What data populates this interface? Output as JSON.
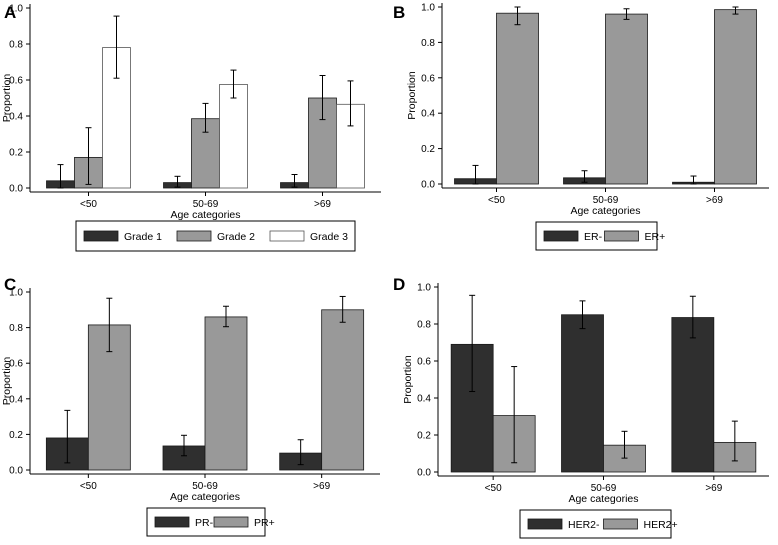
{
  "chart_data": [
    {
      "type": "bar",
      "panel_label": "A",
      "categories": [
        "<50",
        "50-69",
        ">69"
      ],
      "series": [
        {
          "name": "Grade 1",
          "color": "#2f2f2f",
          "values": [
            0.04,
            0.03,
            0.03
          ],
          "err_low": [
            0.0,
            0.005,
            0.005
          ],
          "err_high": [
            0.13,
            0.065,
            0.075
          ]
        },
        {
          "name": "Grade 2",
          "color": "#999999",
          "values": [
            0.17,
            0.385,
            0.5
          ],
          "err_low": [
            0.02,
            0.31,
            0.38
          ],
          "err_high": [
            0.335,
            0.47,
            0.625
          ]
        },
        {
          "name": "Grade 3",
          "color": "#ffffff",
          "values": [
            0.78,
            0.575,
            0.465
          ],
          "err_low": [
            0.61,
            0.5,
            0.345
          ],
          "err_high": [
            0.955,
            0.655,
            0.595
          ]
        }
      ],
      "xlabel": "Age categories",
      "ylabel": "Proportion",
      "ylim": [
        0,
        1.0
      ],
      "yticks": [
        "0.0",
        "0.2",
        "0.4",
        "0.6",
        "0.8",
        "1.0"
      ],
      "legend_position": "bottom"
    },
    {
      "type": "bar",
      "panel_label": "B",
      "categories": [
        "<50",
        "50-69",
        ">69"
      ],
      "series": [
        {
          "name": "ER-",
          "color": "#2f2f2f",
          "values": [
            0.03,
            0.035,
            0.01
          ],
          "err_low": [
            0.0,
            0.01,
            0.0
          ],
          "err_high": [
            0.105,
            0.075,
            0.045
          ]
        },
        {
          "name": "ER+",
          "color": "#999999",
          "values": [
            0.965,
            0.96,
            0.985
          ],
          "err_low": [
            0.9,
            0.93,
            0.96
          ],
          "err_high": [
            1.0,
            0.99,
            1.0
          ]
        }
      ],
      "xlabel": "Age categories",
      "ylabel": "Proportion",
      "ylim": [
        0,
        1.0
      ],
      "yticks": [
        "0.0",
        "0.2",
        "0.4",
        "0.6",
        "0.8",
        "1.0"
      ],
      "legend_position": "bottom"
    },
    {
      "type": "bar",
      "panel_label": "C",
      "categories": [
        "<50",
        "50-69",
        ">69"
      ],
      "series": [
        {
          "name": "PR-",
          "color": "#2f2f2f",
          "values": [
            0.18,
            0.135,
            0.095
          ],
          "err_low": [
            0.04,
            0.08,
            0.03
          ],
          "err_high": [
            0.335,
            0.195,
            0.17
          ]
        },
        {
          "name": "PR+",
          "color": "#999999",
          "values": [
            0.815,
            0.86,
            0.9
          ],
          "err_low": [
            0.665,
            0.805,
            0.83
          ],
          "err_high": [
            0.965,
            0.92,
            0.975
          ]
        }
      ],
      "xlabel": "Age categories",
      "ylabel": "Proportion",
      "ylim": [
        0,
        1.0
      ],
      "yticks": [
        "0.0",
        "0.2",
        "0.4",
        "0.6",
        "0.8",
        "1.0"
      ],
      "legend_position": "bottom"
    },
    {
      "type": "bar",
      "panel_label": "D",
      "categories": [
        "<50",
        "50-69",
        ">69"
      ],
      "series": [
        {
          "name": "HER2-",
          "color": "#2f2f2f",
          "values": [
            0.69,
            0.85,
            0.835
          ],
          "err_low": [
            0.435,
            0.775,
            0.725
          ],
          "err_high": [
            0.955,
            0.925,
            0.95
          ]
        },
        {
          "name": "HER2+",
          "color": "#999999",
          "values": [
            0.305,
            0.145,
            0.16
          ],
          "err_low": [
            0.05,
            0.075,
            0.06
          ],
          "err_high": [
            0.57,
            0.22,
            0.275
          ]
        }
      ],
      "xlabel": "Age categories",
      "ylabel": "Proportion",
      "ylim": [
        0,
        1.0
      ],
      "yticks": [
        "0.0",
        "0.2",
        "0.4",
        "0.6",
        "0.8",
        "1.0"
      ],
      "legend_position": "bottom"
    }
  ]
}
